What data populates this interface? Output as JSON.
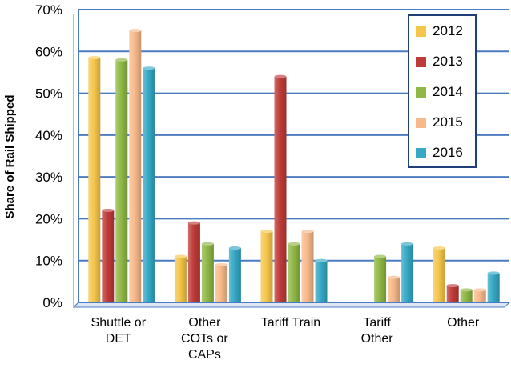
{
  "chart_data": {
    "type": "bar",
    "title": "",
    "xlabel": "",
    "ylabel": "Share of Rail Shipped",
    "ylim": [
      0,
      70
    ],
    "yticks": [
      "0%",
      "10%",
      "20%",
      "30%",
      "40%",
      "50%",
      "60%",
      "70%"
    ],
    "categories": [
      [
        "Shuttle or",
        "DET"
      ],
      [
        "Other",
        "COTs or",
        "CAPs"
      ],
      [
        "Tariff Train"
      ],
      [
        "Tariff",
        "Other"
      ],
      [
        "Other"
      ]
    ],
    "series": [
      {
        "name": "2012",
        "color": "#f6c64b",
        "values": [
          58.5,
          11,
          17,
          0,
          13
        ]
      },
      {
        "name": "2013",
        "color": "#bf3b38",
        "values": [
          22,
          19,
          54,
          0,
          4
        ]
      },
      {
        "name": "2014",
        "color": "#8fb845",
        "values": [
          58,
          14,
          14,
          11,
          3
        ]
      },
      {
        "name": "2015",
        "color": "#f8b98a",
        "values": [
          65,
          9,
          17,
          6,
          3
        ]
      },
      {
        "name": "2016",
        "color": "#36a9c6",
        "values": [
          56,
          13,
          10,
          14,
          7
        ]
      }
    ],
    "grid": true,
    "legend_position": "top-right"
  }
}
